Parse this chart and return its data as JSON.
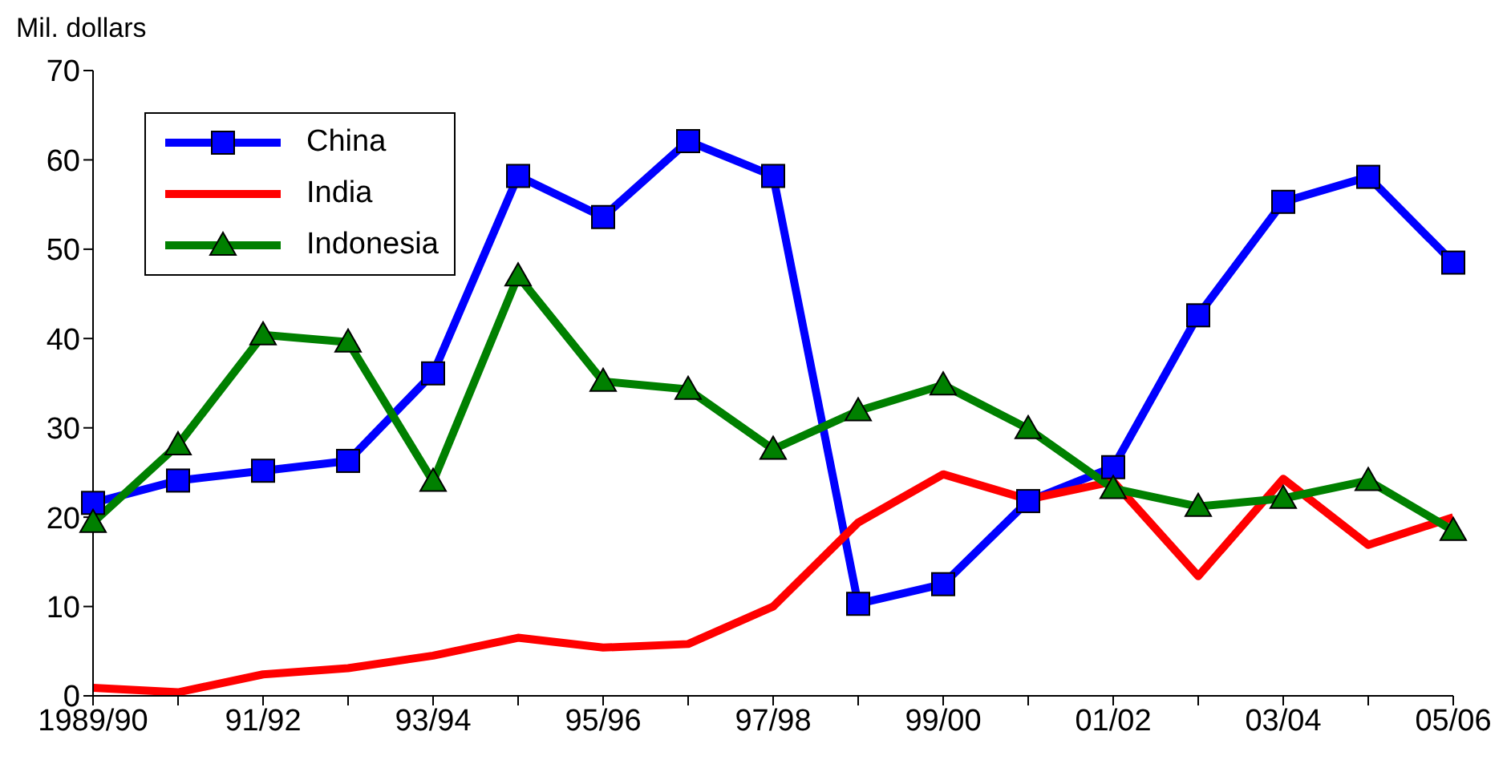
{
  "chart_data": {
    "type": "line",
    "ylabel": "Mil. dollars",
    "categories": [
      "1989/90",
      null,
      "91/92",
      null,
      "93/94",
      null,
      "95/96",
      null,
      "97/98",
      null,
      "99/00",
      null,
      "01/02",
      null,
      "03/04",
      null,
      "05/06"
    ],
    "series": [
      {
        "name": "China",
        "color": "#0000ff",
        "marker": "square",
        "values": [
          21.6,
          24.1,
          25.2,
          26.3,
          36.1,
          58.2,
          53.6,
          62.1,
          58.2,
          10.3,
          12.5,
          21.8,
          25.6,
          42.6,
          55.3,
          58.1,
          48.5
        ]
      },
      {
        "name": "India",
        "color": "#ff0000",
        "marker": "none",
        "values": [
          0.9,
          0.4,
          2.4,
          3.1,
          4.5,
          6.5,
          5.4,
          5.8,
          10,
          19.4,
          24.8,
          22,
          24,
          13.4,
          24.3,
          16.9,
          20
        ]
      },
      {
        "name": "Indonesia",
        "color": "#008000",
        "marker": "triangle",
        "values": [
          19.4,
          28.1,
          40.4,
          39.6,
          24,
          47,
          35.2,
          34.3,
          27.6,
          31.9,
          34.8,
          29.9,
          23.2,
          21.2,
          22.1,
          24.1,
          18.5
        ]
      }
    ],
    "ylim": [
      0,
      70
    ],
    "yticks": [
      0,
      10,
      20,
      30,
      40,
      50,
      60,
      70
    ],
    "grid": false,
    "legend": "top left"
  }
}
